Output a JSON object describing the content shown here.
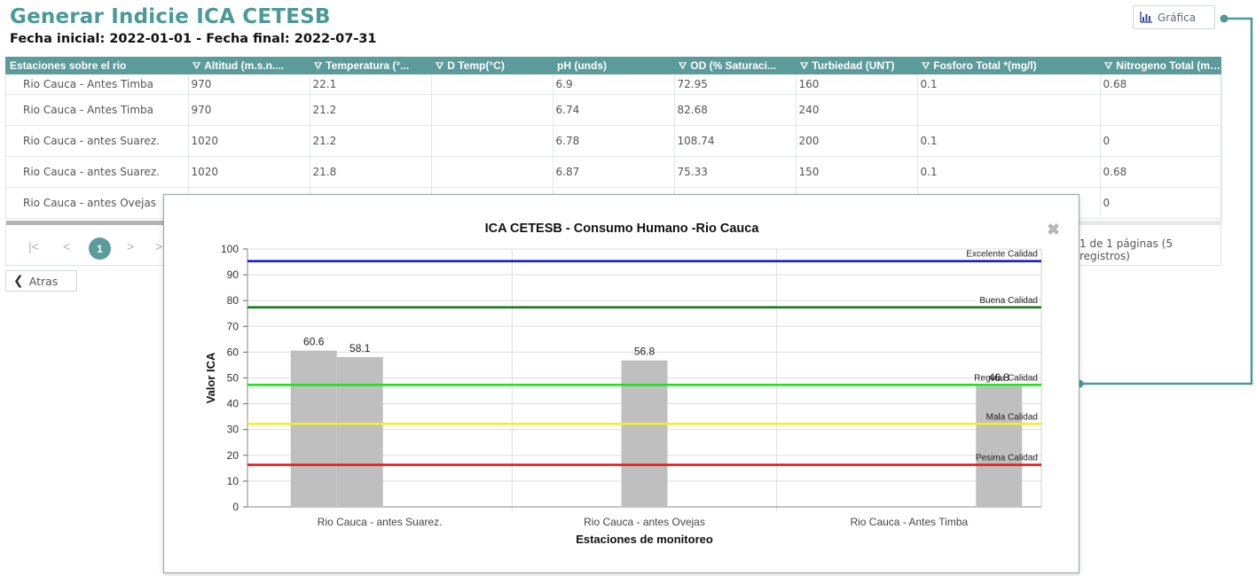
{
  "header": {
    "title": "Generar Indicie ICA CETESB",
    "date_range": "Fecha inicial: 2022-01-01 - Fecha final: 2022-07-31",
    "chart_button_label": "Gráfica"
  },
  "table": {
    "columns": [
      "Estaciones sobre el rio",
      "Altitud (m.s.n....",
      "Temperatura (°...",
      "D Temp(°C)",
      "pH (unds)",
      "OD (% Saturaci...",
      "Turbiedad (UNT)",
      "Fosforo Total *(mg/l)",
      "Nitrogeno Total (mg/l)"
    ],
    "filterable": [
      false,
      true,
      true,
      true,
      false,
      true,
      true,
      true,
      true
    ],
    "rows": [
      [
        "Rio Cauca - Antes Timba",
        "970",
        "22.1",
        "",
        "6.9",
        "72.95",
        "160",
        "0.1",
        "0.68"
      ],
      [
        "Rio Cauca - Antes Timba",
        "970",
        "21.2",
        "",
        "6.74",
        "82.68",
        "240",
        "",
        ""
      ],
      [
        "Rio Cauca - antes Suarez.",
        "1020",
        "21.2",
        "",
        "6.78",
        "108.74",
        "200",
        "0.1",
        "0"
      ],
      [
        "Rio Cauca - antes Suarez.",
        "1020",
        "21.8",
        "",
        "6.87",
        "75.33",
        "150",
        "0.1",
        "0.68"
      ],
      [
        "Rio Cauca - antes Ovejas",
        "",
        "",
        "",
        "",
        "",
        "",
        "",
        "0"
      ]
    ]
  },
  "pager": {
    "first": "|<",
    "prev": "<",
    "current_page": "1",
    "next": ">",
    "last": ">|",
    "info": "1 de 1 páginas (5 registros)"
  },
  "back_button_label": "Atras",
  "modal": {
    "close_label": "✖"
  },
  "chart_data": {
    "type": "bar",
    "title": "ICA CETESB - Consumo Humano -Rio Cauca",
    "xlabel": "Estaciones de monitoreo",
    "ylabel": "Valor ICA",
    "ylim": [
      0,
      100
    ],
    "yticks": [
      0,
      10,
      20,
      30,
      40,
      50,
      60,
      70,
      80,
      90,
      100
    ],
    "grid": true,
    "categories": [
      "Rio Cauca - antes Suarez.",
      "Rio Cauca - antes Ovejas",
      "Rio Cauca - Antes Timba"
    ],
    "bars": [
      {
        "category": "Rio Cauca - antes Suarez.",
        "value": 60.6,
        "label": "60.6"
      },
      {
        "category": "Rio Cauca - antes Suarez.",
        "value": 58.1,
        "label": "58.1"
      },
      {
        "category": "Rio Cauca - antes Ovejas",
        "value": 56.8,
        "label": "56.8"
      },
      {
        "category": "Rio Cauca - Antes Timba",
        "value": 46.8,
        "label": "46.8"
      }
    ],
    "bar_color": "#bfbfbf",
    "thresholds": [
      {
        "name": "Excelente Calidad",
        "value": 95.3,
        "color": "#1a1adb"
      },
      {
        "name": "Buena Calidad",
        "value": 77.4,
        "color": "#1a7a1a"
      },
      {
        "name": "Regular Calidad",
        "value": 47.3,
        "color": "#22e022"
      },
      {
        "name": "Mala Calidad",
        "value": 32.2,
        "color": "#f0f02a"
      },
      {
        "name": "Pesima Calidad",
        "value": 16.3,
        "color": "#e81818"
      }
    ]
  },
  "colors": {
    "accent": "#4a9a96",
    "header_bg": "#5b9c9b"
  }
}
